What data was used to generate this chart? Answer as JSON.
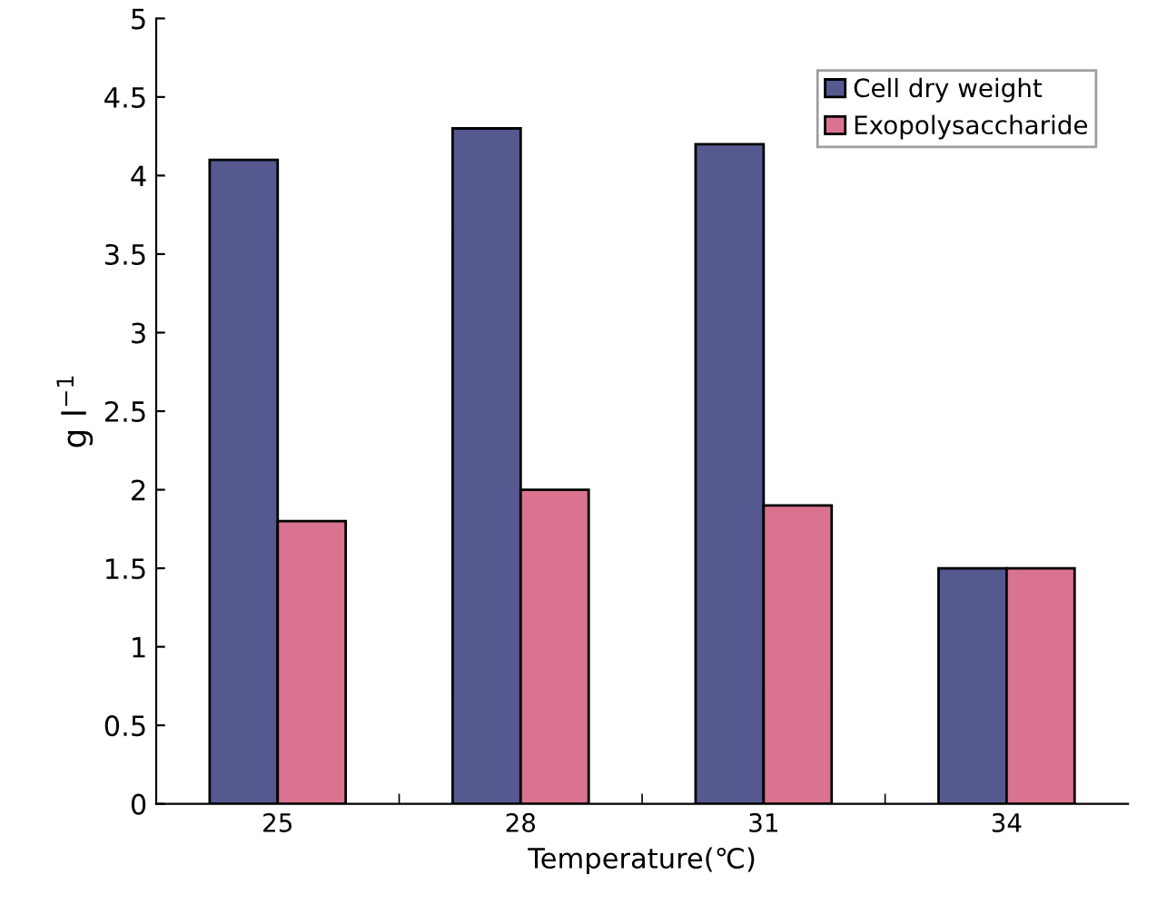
{
  "chart_data": {
    "type": "bar",
    "xlabel": "Temperature(℃)",
    "ylabel": "g l$^{−1}$",
    "categories": [
      "25",
      "28",
      "31",
      "34"
    ],
    "series": [
      {
        "name": "Cell dry weight",
        "color": "#55598f",
        "values": [
          4.1,
          4.3,
          4.2,
          1.5
        ]
      },
      {
        "name": "Exopolysaccharide",
        "color": "#d9738f",
        "values": [
          1.8,
          2.0,
          1.9,
          1.5
        ]
      }
    ],
    "ylim": [
      0,
      5
    ],
    "yticks": [
      0,
      0.5,
      1,
      1.5,
      2,
      2.5,
      3,
      3.5,
      4,
      4.5,
      5
    ],
    "grid": false,
    "legend": "top right"
  }
}
